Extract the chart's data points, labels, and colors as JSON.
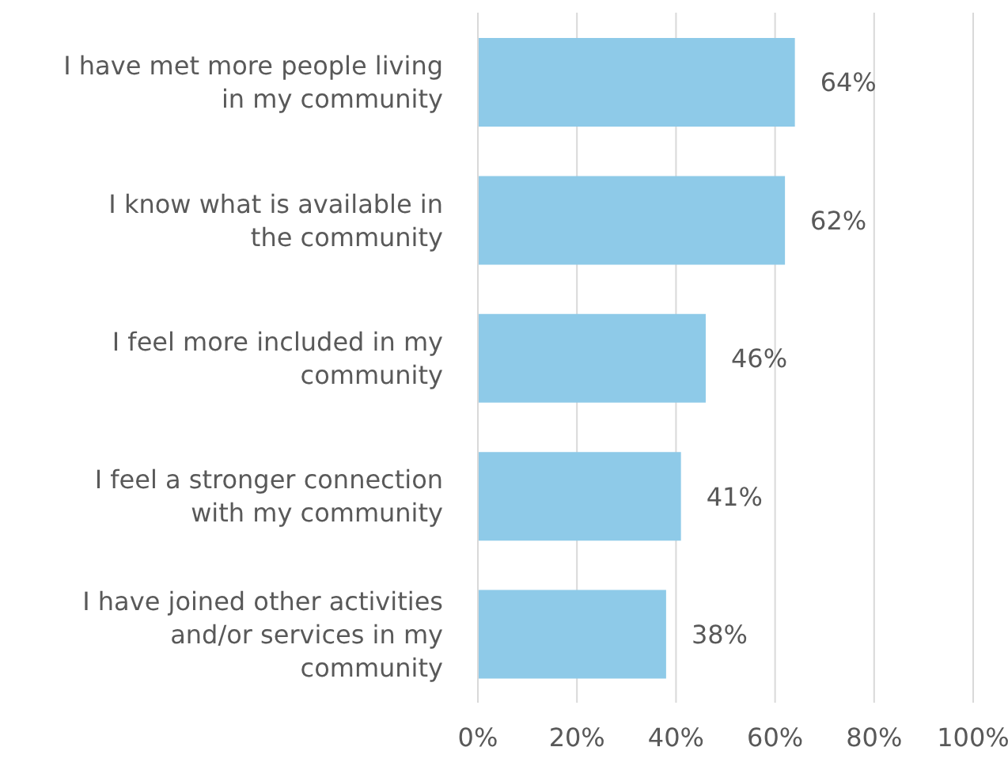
{
  "chart_data": {
    "type": "bar",
    "orientation": "horizontal",
    "categories": [
      "I have met more people living in my community",
      "I know what is available in the community",
      "I feel more included in my community",
      "I feel a stronger connection with my community",
      "I have joined other activities and/or services in my community"
    ],
    "values": [
      64,
      62,
      46,
      41,
      38
    ],
    "value_labels": [
      "64%",
      "62%",
      "46%",
      "41%",
      "38%"
    ],
    "color": "#8ecae8",
    "xlim": [
      0,
      100
    ],
    "xticks": [
      {
        "value": 0,
        "label": "0%"
      },
      {
        "value": 20,
        "label": "20%"
      },
      {
        "value": 40,
        "label": "40%"
      },
      {
        "value": 60,
        "label": "60%"
      },
      {
        "value": 80,
        "label": "80%"
      },
      {
        "value": 100,
        "label": "100%"
      }
    ],
    "grid": "x"
  }
}
